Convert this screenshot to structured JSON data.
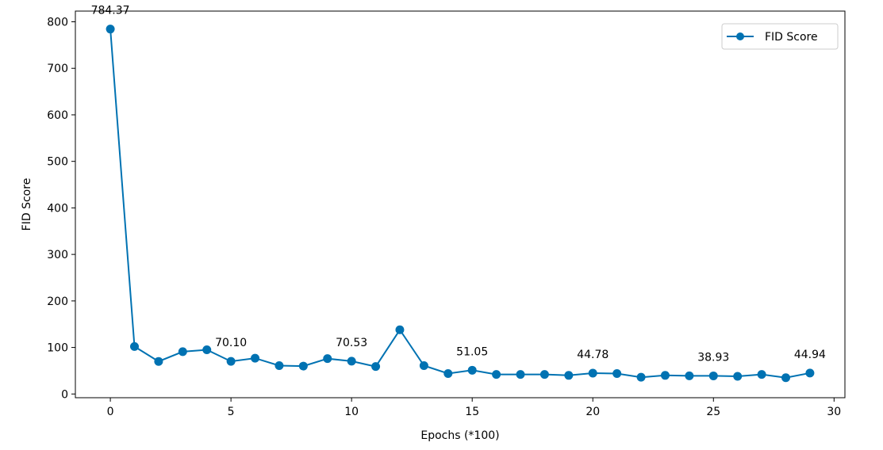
{
  "chart_data": {
    "type": "line",
    "title": "",
    "xlabel": "Epochs (*100)",
    "ylabel": "FID Score",
    "xlim": [
      -1.45,
      30.45
    ],
    "ylim": [
      -8,
      823
    ],
    "xticks": [
      0,
      5,
      10,
      15,
      20,
      25,
      30
    ],
    "yticks": [
      0,
      100,
      200,
      300,
      400,
      500,
      600,
      700,
      800
    ],
    "grid": false,
    "legend_position": "top-right",
    "color": "#0072b2",
    "x": [
      0,
      1,
      2,
      3,
      4,
      5,
      6,
      7,
      8,
      9,
      10,
      11,
      12,
      13,
      14,
      15,
      16,
      17,
      18,
      19,
      20,
      21,
      22,
      23,
      24,
      25,
      26,
      27,
      28,
      29
    ],
    "series": [
      {
        "name": "FID Score",
        "values": [
          784.37,
          102,
          70,
          91,
          95,
          70.1,
          77,
          61,
          60,
          76,
          70.53,
          59,
          138,
          61,
          44,
          51.05,
          42,
          42,
          42,
          40,
          44.78,
          44,
          36,
          40,
          39,
          38.93,
          38,
          42,
          35,
          44.94
        ]
      }
    ],
    "annotations": [
      {
        "x": 0,
        "text": "784.37"
      },
      {
        "x": 5,
        "text": "70.10"
      },
      {
        "x": 10,
        "text": "70.53"
      },
      {
        "x": 15,
        "text": "51.05"
      },
      {
        "x": 20,
        "text": "44.78"
      },
      {
        "x": 25,
        "text": "38.93"
      },
      {
        "x": 29,
        "text": "44.94"
      }
    ]
  }
}
